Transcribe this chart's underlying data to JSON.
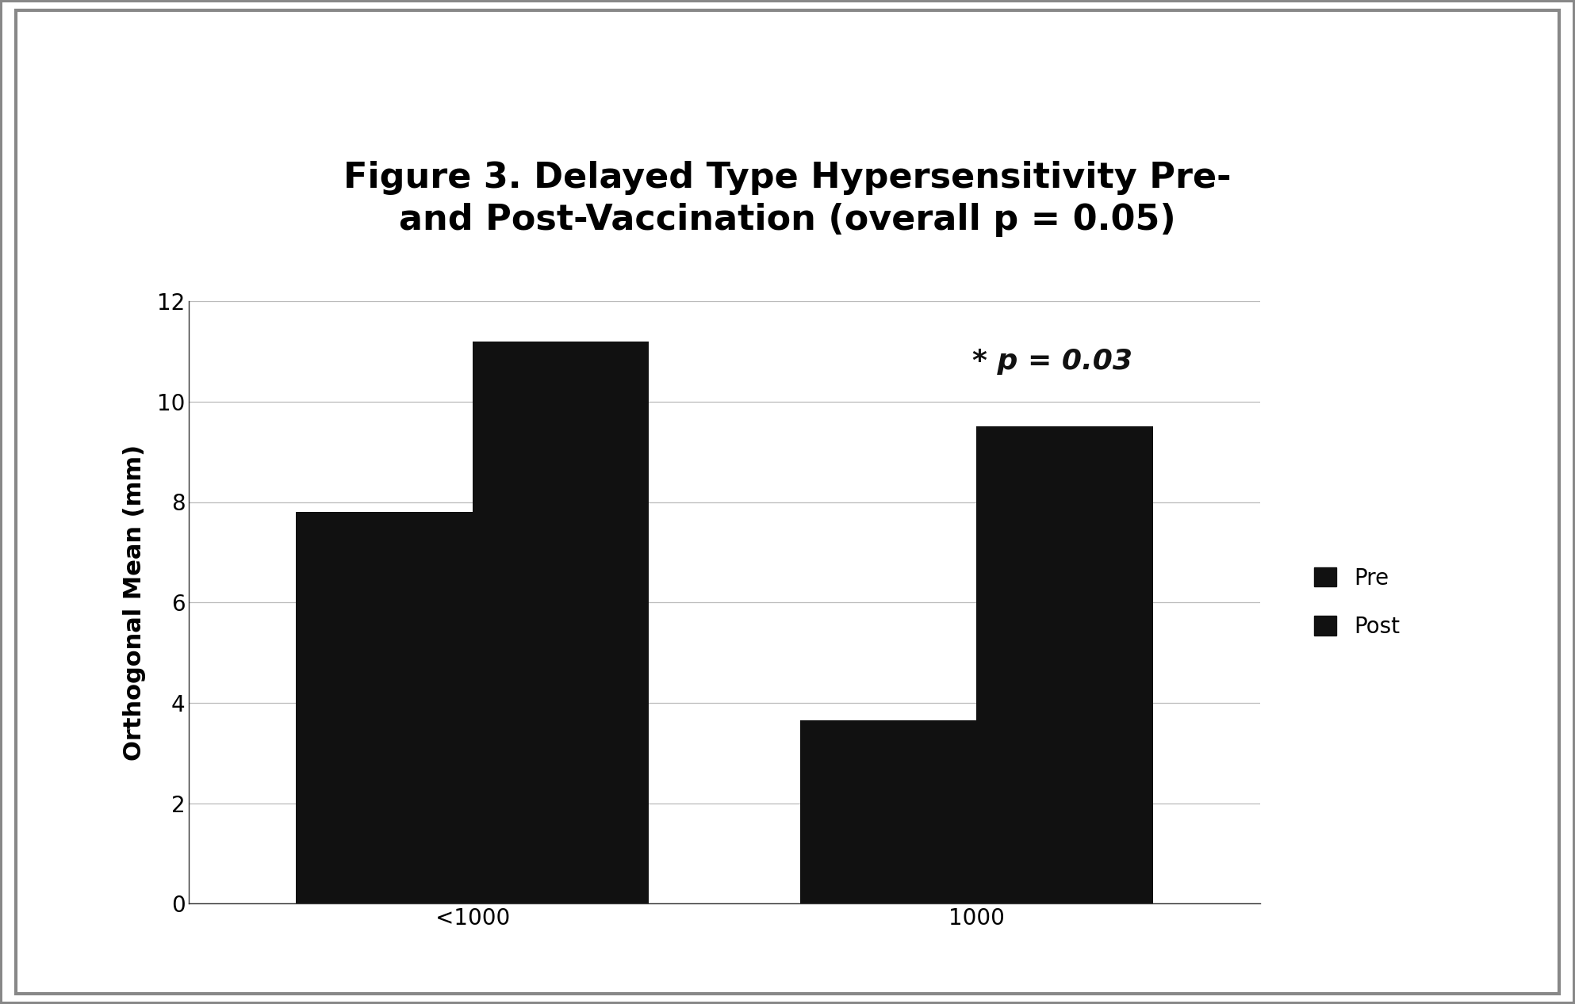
{
  "title_line1": "Figure 3. Delayed Type Hypersensitivity Pre-",
  "title_line2": "and Post-Vaccination (overall p = 0.05)",
  "ylabel": "Orthogonal Mean (mm)",
  "categories": [
    "<1000",
    "1000"
  ],
  "pre_values": [
    7.8,
    3.65
  ],
  "post_values": [
    11.2,
    9.5
  ],
  "bar_color": "#111111",
  "ylim": [
    0,
    12
  ],
  "yticks": [
    0,
    2,
    4,
    6,
    8,
    10,
    12
  ],
  "annotation_text": "* p = 0.03",
  "legend_labels": [
    "Pre",
    "Post"
  ],
  "background_color": "#ffffff",
  "title_fontsize": 32,
  "axis_fontsize": 22,
  "tick_fontsize": 20,
  "legend_fontsize": 20,
  "annotation_fontsize": 26,
  "bar_width": 0.28,
  "group_positions": [
    0.3,
    1.1
  ]
}
